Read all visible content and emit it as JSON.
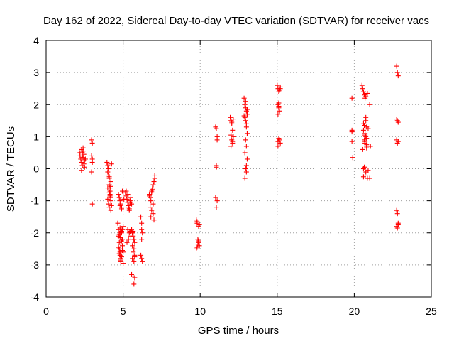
{
  "chart_data": {
    "type": "scatter",
    "title": "Day 162 of 2022, Sidereal Day-to-day VTEC variation (SDTVAR) for receiver vacs",
    "xlabel": "GPS time / hours",
    "ylabel": "SDTVAR / TECUs",
    "xlim": [
      0,
      25
    ],
    "ylim": [
      -4,
      4
    ],
    "xticks": [
      "0",
      "5",
      "10",
      "15",
      "20",
      "25"
    ],
    "yticks": [
      "-4",
      "-3",
      "-2",
      "-1",
      "0",
      "1",
      "2",
      "3",
      "4"
    ],
    "grid": true,
    "marker": "+",
    "color": "#ff0000",
    "series": [
      {
        "name": "vacs",
        "x": [
          2.2,
          2.25,
          2.3,
          2.3,
          2.35,
          2.35,
          2.4,
          2.4,
          2.45,
          2.45,
          2.5,
          2.5,
          2.3,
          2.4,
          2.55,
          2.2,
          2.35,
          2.95,
          3.0,
          2.95,
          3.0,
          3.0,
          2.95,
          3.0,
          3.95,
          4.0,
          4.0,
          4.05,
          4.05,
          4.1,
          4.1,
          4.15,
          4.15,
          4.2,
          4.2,
          4.1,
          4.05,
          4.15,
          4.2,
          4.0,
          4.1,
          4.15,
          4.2,
          4.25,
          4.1,
          4.2,
          4.0,
          4.25,
          4.65,
          4.7,
          4.7,
          4.75,
          4.75,
          4.8,
          4.8,
          4.85,
          4.85,
          4.9,
          4.9,
          4.95,
          4.95,
          5.0,
          5.0,
          4.8,
          4.9,
          4.75,
          4.85,
          4.95,
          4.7,
          4.8,
          4.9,
          4.75,
          4.85,
          5.0,
          4.95,
          4.8,
          4.75,
          4.7,
          4.75,
          4.8,
          4.85,
          4.9,
          4.95,
          5.0,
          5.05,
          4.8,
          4.9,
          5.15,
          5.2,
          5.25,
          5.3,
          5.35,
          5.4,
          5.45,
          5.5,
          5.55,
          5.3,
          5.4,
          5.2,
          5.35,
          5.45,
          5.55,
          5.6,
          5.65,
          5.7,
          5.75,
          5.6,
          5.7,
          5.65,
          5.75,
          5.6,
          5.7,
          5.55,
          5.65,
          5.75,
          5.7,
          5.6,
          5.7,
          5.65,
          5.75,
          5.3,
          5.4,
          5.5,
          5.35,
          5.25,
          5.45,
          6.15,
          6.2,
          6.2,
          6.25,
          6.15,
          6.2,
          6.25,
          6.2,
          6.7,
          6.75,
          6.8,
          6.85,
          6.9,
          6.95,
          7.0,
          7.05,
          6.75,
          6.85,
          6.95,
          7.0,
          6.8,
          6.9,
          7.05,
          6.7,
          6.85,
          6.95,
          9.75,
          9.8,
          9.85,
          9.9,
          9.95,
          9.8,
          9.9,
          9.85,
          9.95,
          9.8,
          9.75,
          9.9,
          11.0,
          11.05,
          11.1,
          11.1,
          11.05,
          11.05,
          11.0,
          11.1,
          11.05,
          11.95,
          12.0,
          12.05,
          12.1,
          12.15,
          12.05,
          12.1,
          12.0,
          12.15,
          12.05,
          12.1,
          12.0,
          12.85,
          12.9,
          12.95,
          13.0,
          13.05,
          12.9,
          12.95,
          13.0,
          13.05,
          12.95,
          13.0,
          12.9,
          13.05,
          12.95,
          13.0,
          12.9,
          13.0,
          12.95,
          13.05,
          12.85,
          13.0,
          15.0,
          15.05,
          15.1,
          15.15,
          15.2,
          15.05,
          15.1,
          15.15,
          15.05,
          15.1,
          15.15,
          15.2,
          15.05,
          15.1,
          15.2,
          15.1,
          15.05,
          19.85,
          19.85,
          19.85,
          19.9,
          19.85,
          20.5,
          20.55,
          20.6,
          20.65,
          20.7,
          20.75,
          20.8,
          20.6,
          20.7,
          20.75,
          20.65,
          20.7,
          20.8,
          20.6,
          20.75,
          20.55,
          20.7,
          20.8,
          20.6,
          20.85,
          20.7,
          20.75,
          20.6,
          20.8,
          20.9,
          21.0,
          20.65,
          20.75,
          20.85,
          20.9,
          20.7,
          20.8,
          21.05,
          21.0,
          20.65,
          22.75,
          22.8,
          22.85,
          22.75,
          22.8,
          22.85,
          22.75,
          22.8,
          22.85,
          22.75,
          22.8,
          22.85,
          22.75,
          22.8,
          22.85,
          22.8
        ],
        "y": [
          0.5,
          0.3,
          0.6,
          0.2,
          0.4,
          0.1,
          0.55,
          0.35,
          0.45,
          0.15,
          0.25,
          0.05,
          -0.05,
          0.65,
          0.3,
          0.4,
          0.5,
          0.9,
          0.8,
          0.4,
          0.3,
          0.2,
          -0.1,
          -1.1,
          0.2,
          0.1,
          -0.1,
          0.0,
          -0.2,
          -0.3,
          -0.5,
          -0.6,
          -0.7,
          -0.9,
          -1.0,
          -1.2,
          -1.1,
          -0.8,
          -0.4,
          -0.6,
          -0.75,
          -0.85,
          -1.3,
          0.15,
          -0.25,
          -0.55,
          -0.95,
          -1.15,
          -1.7,
          -1.9,
          -2.1,
          -2.3,
          -2.5,
          -2.6,
          -2.7,
          -2.8,
          -2.9,
          -2.0,
          -1.95,
          -2.2,
          -2.4,
          -2.6,
          -1.8,
          -2.15,
          -2.75,
          -2.05,
          -2.35,
          -2.55,
          -2.45,
          -1.85,
          -2.25,
          -2.65,
          -2.85,
          -2.95,
          -1.9,
          -2.0,
          -2.5,
          -0.8,
          -0.9,
          -1.0,
          -1.1,
          -1.2,
          -0.7,
          -0.75,
          -0.95,
          -1.15,
          -1.25,
          -0.75,
          -0.85,
          -0.95,
          -1.05,
          -1.15,
          -1.25,
          -1.0,
          -0.9,
          -1.1,
          -0.8,
          -1.3,
          -0.7,
          -1.2,
          -1.05,
          -1.9,
          -2.0,
          -2.1,
          -2.2,
          -2.3,
          -2.4,
          -2.5,
          -2.6,
          -2.7,
          -2.8,
          -2.9,
          -3.3,
          -3.35,
          -3.4,
          -3.6,
          -2.0,
          -2.2,
          -1.95,
          -2.75,
          -1.9,
          -2.0,
          -2.1,
          -2.2,
          -2.3,
          -1.95,
          -1.5,
          -1.7,
          -1.9,
          -2.0,
          -2.7,
          -2.8,
          -2.9,
          -2.2,
          -0.8,
          -0.9,
          -1.0,
          -0.7,
          -0.6,
          -0.5,
          -0.4,
          -0.2,
          -1.2,
          -1.3,
          -1.4,
          -1.6,
          -1.5,
          -0.65,
          -0.3,
          -0.85,
          -0.75,
          -1.1,
          -1.6,
          -1.7,
          -2.2,
          -2.3,
          -2.4,
          -1.65,
          -2.25,
          -2.35,
          -1.75,
          -2.45,
          -2.5,
          -1.8,
          1.3,
          1.25,
          1.0,
          0.9,
          0.1,
          0.05,
          -0.9,
          -1.0,
          -1.2,
          1.6,
          1.5,
          1.4,
          1.2,
          1.0,
          0.9,
          0.8,
          0.7,
          1.55,
          1.45,
          0.85,
          1.05,
          2.2,
          2.0,
          1.9,
          1.8,
          1.7,
          1.6,
          1.5,
          1.3,
          1.1,
          0.9,
          0.7,
          0.5,
          0.3,
          0.0,
          -0.1,
          -0.3,
          1.4,
          2.1,
          1.85,
          1.65,
          0.1,
          2.6,
          2.5,
          2.4,
          2.45,
          2.55,
          2.0,
          1.9,
          1.8,
          1.7,
          2.05,
          0.9,
          0.8,
          0.7,
          0.95,
          2.5,
          1.95,
          0.85,
          2.2,
          1.2,
          0.85,
          0.35,
          1.15,
          2.6,
          2.5,
          2.4,
          2.3,
          2.2,
          1.5,
          1.3,
          1.2,
          1.1,
          1.0,
          0.9,
          0.8,
          0.7,
          1.4,
          1.6,
          0.6,
          0.85,
          0.75,
          0.0,
          -0.3,
          -0.2,
          -0.1,
          -0.25,
          0.65,
          -0.05,
          2.0,
          1.35,
          2.25,
          2.35,
          1.25,
          1.05,
          0.95,
          0.7,
          -0.3,
          0.05,
          3.2,
          3.0,
          2.9,
          1.55,
          1.5,
          1.45,
          0.9,
          0.8,
          0.85,
          -1.3,
          -1.4,
          -1.7,
          -1.8,
          -1.85,
          -1.75,
          -1.35
        ]
      }
    ]
  }
}
